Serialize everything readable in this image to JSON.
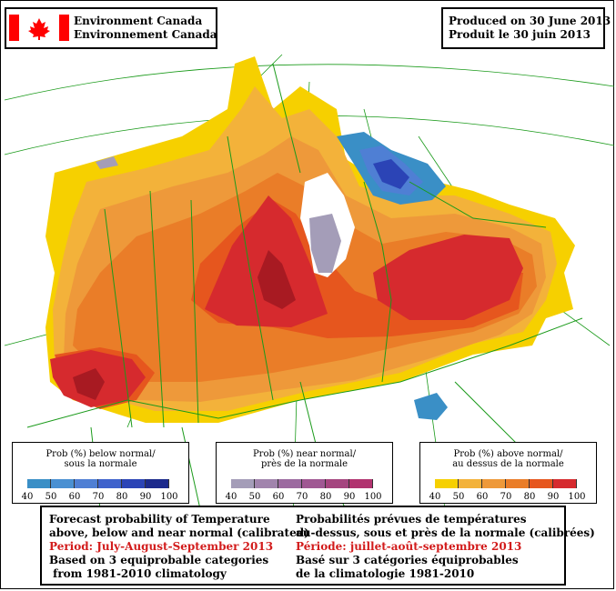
{
  "header": {
    "org_en": "Environment Canada",
    "org_fr": "Environnement Canada",
    "produced_en": "Produced on 30 June 2013",
    "produced_fr": "Produit le 30 juin 2013"
  },
  "legends": [
    {
      "title_en": "Prob (%) below normal/",
      "title_fr": "sous la normale",
      "colors": [
        "#3a8fc6",
        "#4a90d2",
        "#4f7fd4",
        "#3e62cc",
        "#2b44b6",
        "#1c2a8c"
      ],
      "ticks": [
        "40",
        "50",
        "60",
        "70",
        "80",
        "90",
        "100"
      ]
    },
    {
      "title_en": "Prob (%) near normal/",
      "title_fr": "près de la normale",
      "colors": [
        "#a49db8",
        "#a184ad",
        "#9c6aa0",
        "#a05893",
        "#a5457f",
        "#b1336f"
      ],
      "ticks": [
        "40",
        "50",
        "60",
        "70",
        "80",
        "90",
        "100"
      ]
    },
    {
      "title_en": "Prob (%) above normal/",
      "title_fr": "au dessus de la normale",
      "colors": [
        "#f6d000",
        "#f3b23a",
        "#ee993a",
        "#ea7d28",
        "#e6561e",
        "#d62a2e"
      ],
      "ticks": [
        "40",
        "50",
        "60",
        "70",
        "80",
        "90",
        "100"
      ]
    }
  ],
  "footer": {
    "en": [
      "Forecast probability of Temperature",
      "above, below and near normal (calibrated)",
      "Period: July-August-September 2013",
      "Based on 3 equiprobable categories",
      " from 1981-2010 climatology"
    ],
    "fr": [
      "Probabilités prévues de températures",
      "au-dessus, sous et près de la normale (calibrées)",
      "Période: juillet-août-septembre 2013",
      "Basé sur 3 catégories équiprobables",
      "de la climatologie 1981-2010"
    ]
  },
  "colors": {
    "above_40": "#f6d000",
    "above_50": "#f3b23a",
    "above_60": "#ee993a",
    "above_70": "#ea7d28",
    "above_80": "#e6561e",
    "above_90": "#d62a2e",
    "above_100": "#a81a22",
    "below_40": "#3a8fc6",
    "below_80": "#2b44b6",
    "near_40": "#a49db8",
    "boundary": "#1a9a1a",
    "flag_red": "#ff0000"
  }
}
